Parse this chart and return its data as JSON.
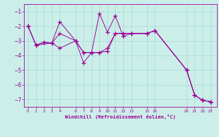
{
  "bg_color": "#cceee8",
  "line_color": "#990099",
  "grid_color": "#aaddda",
  "xlabel": "Windchill (Refroidissement éolien,°C)",
  "series1": {
    "x": [
      0,
      1,
      2,
      3,
      4,
      6,
      7,
      8,
      9,
      10,
      11,
      12,
      13,
      15,
      16,
      20,
      21,
      22,
      23
    ],
    "y": [
      -2.0,
      -3.3,
      -3.1,
      -3.15,
      -1.7,
      -3.0,
      -4.5,
      -3.8,
      -1.15,
      -2.4,
      -1.3,
      -2.7,
      -2.5,
      -2.5,
      -2.3,
      -5.0,
      -6.7,
      -7.05,
      -7.15
    ]
  },
  "series2": {
    "x": [
      0,
      1,
      2,
      3,
      4,
      6,
      7,
      8,
      9,
      10,
      11,
      12,
      13,
      15,
      16,
      20,
      21,
      22,
      23
    ],
    "y": [
      -2.0,
      -3.3,
      -3.1,
      -3.15,
      -2.5,
      -3.0,
      -3.8,
      -3.8,
      -3.8,
      -3.5,
      -2.5,
      -2.5,
      -2.5,
      -2.5,
      -2.3,
      -5.0,
      -6.7,
      -7.05,
      -7.15
    ]
  },
  "series3": {
    "x": [
      0,
      1,
      3,
      4,
      6,
      7,
      8,
      9,
      10,
      11,
      12,
      13,
      15,
      16,
      20,
      21,
      22,
      23
    ],
    "y": [
      -2.0,
      -3.3,
      -3.15,
      -3.5,
      -3.0,
      -3.8,
      -3.8,
      -3.8,
      -3.7,
      -2.5,
      -2.5,
      -2.5,
      -2.5,
      -2.3,
      -5.0,
      -6.7,
      -7.05,
      -7.15
    ]
  },
  "yticks": [
    -1,
    -2,
    -3,
    -4,
    -5,
    -6,
    -7
  ],
  "xticks": [
    0,
    1,
    2,
    3,
    4,
    6,
    7,
    8,
    9,
    10,
    11,
    12,
    13,
    15,
    16,
    20,
    21,
    22,
    23
  ],
  "xlim": [
    -0.5,
    23.8
  ],
  "ylim": [
    -7.5,
    -0.5
  ]
}
